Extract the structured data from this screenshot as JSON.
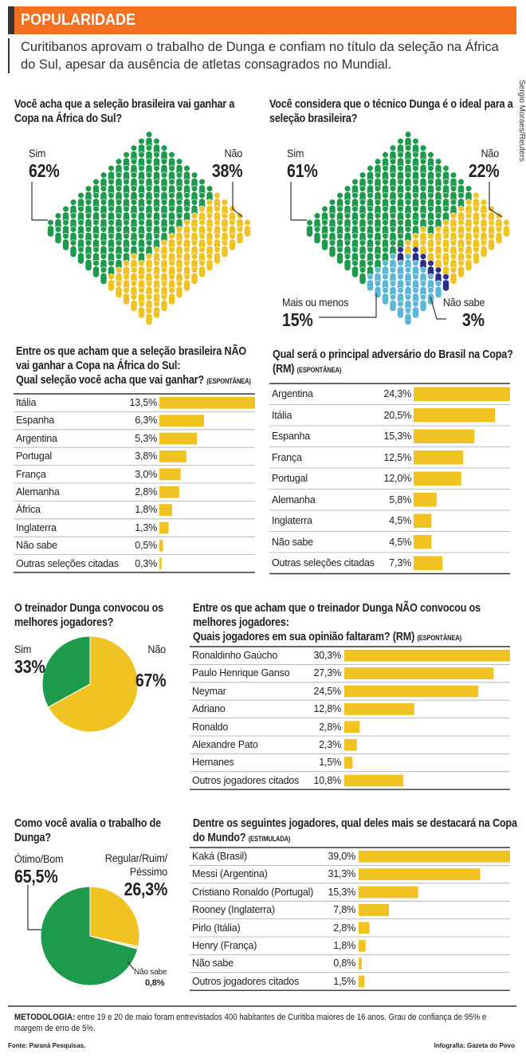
{
  "header": {
    "title": "POPULARIDADE",
    "subtitle": "Curitibanos aprovam o trabalho de Dunga e confiam no título da seleção na África do Sul, apesar da  ausência de atletas consagrados no Mundial.",
    "credit": "Sergio Moraes/Reuters"
  },
  "chart_data": [
    {
      "type": "pictogram",
      "title": "Você acha que a seleção brasileira vai ganhar a Copa na África do Sul?",
      "categories": [
        "Sim",
        "Não"
      ],
      "values": [
        62,
        38
      ],
      "value_labels": [
        "62%",
        "38%"
      ],
      "colors": [
        "#1d9a4b",
        "#f0c322"
      ]
    },
    {
      "type": "pictogram",
      "title": "Você considera que o técnico Dunga é o ideal para a seleção brasileira?",
      "categories": [
        "Sim",
        "Não",
        "Mais ou menos",
        "Não sabe"
      ],
      "values": [
        61,
        22,
        15,
        3
      ],
      "value_labels": [
        "61%",
        "22%",
        "15%",
        "3%"
      ],
      "colors": [
        "#1d9a4b",
        "#f0c322",
        "#5cb6d8",
        "#2b2e86"
      ]
    },
    {
      "type": "bar",
      "title": "Entre os que acham que a seleção brasileira NÃO vai ganhar a Copa na África do Sul:",
      "subtitle": "Qual seleção você acha que vai ganhar?",
      "note": "(ESPONTÂNEA)",
      "categories": [
        "Itália",
        "Espanha",
        "Argentina",
        "Portugal",
        "França",
        "Alemanha",
        "África",
        "Inglaterra",
        "Não sabe",
        "Outras seleções citadas"
      ],
      "values": [
        13.5,
        6.3,
        5.3,
        3.8,
        3.0,
        2.8,
        1.8,
        1.3,
        0.5,
        0.3
      ],
      "value_labels": [
        "13,5%",
        "6,3%",
        "5,3%",
        "3,8%",
        "3,0%",
        "2,8%",
        "1,8%",
        "1,3%",
        "0,5%",
        "0,3%"
      ],
      "color": "#f0c322"
    },
    {
      "type": "bar",
      "title": "Qual será o principal adversário do Brasil na Copa?",
      "subtitle": "(RM)",
      "note": "(ESPONTÂNEA)",
      "categories": [
        "Argentina",
        "Itália",
        "Espanha",
        "França",
        "Portugal",
        "Alemanha",
        "Inglaterra",
        "Não sabe",
        "Outras seleções citadas"
      ],
      "values": [
        24.3,
        20.5,
        15.3,
        12.5,
        12.0,
        5.8,
        4.5,
        4.5,
        7.3
      ],
      "value_labels": [
        "24,3%",
        "20,5%",
        "15,3%",
        "12,5%",
        "12,0%",
        "5,8%",
        "4,5%",
        "4,5%",
        "7,3%"
      ],
      "color": "#f0c322"
    },
    {
      "type": "pie",
      "title": "O treinador Dunga convocou os melhores jogadores?",
      "categories": [
        "Sim",
        "Não"
      ],
      "values": [
        33,
        67
      ],
      "value_labels": [
        "33%",
        "67%"
      ],
      "colors": [
        "#1d9a4b",
        "#f0c322"
      ]
    },
    {
      "type": "bar",
      "title": "Entre os que acham que o treinador Dunga NÃO convocou os melhores jogadores:",
      "subtitle": "Quais jogadores em sua opinião faltaram? (RM)",
      "note": "(ESPONTÂNEA)",
      "categories": [
        "Ronaldinho Gaúcho",
        "Paulo Henrique Ganso",
        "Neymar",
        "Adriano",
        "Ronaldo",
        "Alexandre Pato",
        "Hernanes",
        "Outros jogadores citados"
      ],
      "values": [
        30.3,
        27.3,
        24.5,
        12.8,
        2.8,
        2.3,
        1.5,
        10.8
      ],
      "value_labels": [
        "30,3%",
        "27,3%",
        "24,5%",
        "12,8%",
        "2,8%",
        "2,3%",
        "1,5%",
        "10,8%"
      ],
      "color": "#f0c322"
    },
    {
      "type": "pie",
      "title": "Como você avalia o trabalho de Dunga?",
      "categories": [
        "Ótimo/Bom",
        "Regular/Ruim/ Péssimo",
        "Não sabe"
      ],
      "values": [
        65.5,
        26.3,
        0.8
      ],
      "value_labels": [
        "65,5%",
        "26,3%",
        "0,8%"
      ],
      "colors": [
        "#1d9a4b",
        "#f0c322",
        "#dfe9cf"
      ]
    },
    {
      "type": "bar",
      "title": "Dentre os seguintes jogadores, qual deles mais se destacará na Copa do Mundo?",
      "note": "(ESTIMULADA)",
      "categories": [
        "Kaká (Brasil)",
        "Messi (Argentina)",
        "Cristiano Ronaldo (Portugal)",
        "Rooney (Inglaterra)",
        "Pirlo (Itália)",
        "Henry (França)",
        "Não sabe",
        "Outros jogadores citados"
      ],
      "values": [
        39.0,
        31.3,
        15.3,
        7.8,
        2.8,
        1.8,
        0.8,
        1.5
      ],
      "value_labels": [
        "39,0%",
        "31,3%",
        "15,3%",
        "7,8%",
        "2,8%",
        "1,8%",
        "0,8%",
        "1,5%"
      ],
      "color": "#f0c322"
    }
  ],
  "methodology": {
    "label": "METODOLOGIA:",
    "text": "entre 19 e 20 de maio foram entrevistados 400 habitantes de Curitiba maiores de 16 anos. Grau de confiança de 95% e margem de erro de 5%."
  },
  "footer": {
    "source": "Fonte: Paraná Pesquisas.",
    "credit": "Infografia: Gazeta do Povo"
  }
}
